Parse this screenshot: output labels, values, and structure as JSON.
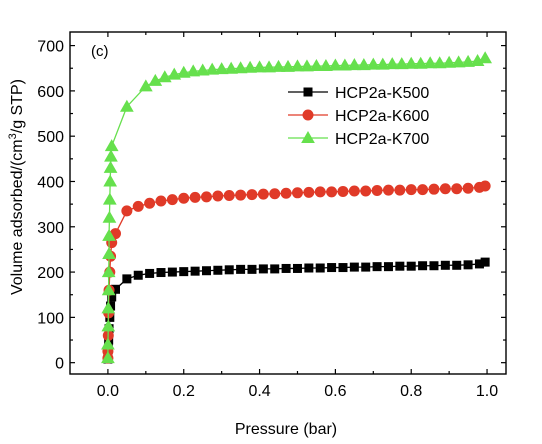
{
  "panel_label": "(c)",
  "chart_data": {
    "type": "scatter",
    "xlabel": "Pressure (bar)",
    "ylabel_pre": "Volume adsorbed/(cm",
    "ylabel_sup": "3",
    "ylabel_post": "/g STP)",
    "xlim": [
      -0.1,
      1.05
    ],
    "ylim": [
      -25,
      730
    ],
    "xticks": [
      0.0,
      0.2,
      0.4,
      0.6,
      0.8,
      1.0
    ],
    "xtick_labels": [
      "0.0",
      "0.2",
      "0.4",
      "0.6",
      "0.8",
      "1.0"
    ],
    "yticks": [
      0,
      100,
      200,
      300,
      400,
      500,
      600,
      700
    ],
    "ytick_labels": [
      "0",
      "100",
      "200",
      "300",
      "400",
      "500",
      "600",
      "700"
    ],
    "grid": false,
    "legend_position": "top-right",
    "series": [
      {
        "name": "HCP2a-K500",
        "marker": "square",
        "color": "#000000",
        "x": [
          0.0,
          0.0,
          0.001,
          0.002,
          0.003,
          0.005,
          0.007,
          0.01,
          0.02,
          0.05,
          0.08,
          0.11,
          0.14,
          0.17,
          0.2,
          0.23,
          0.26,
          0.29,
          0.32,
          0.35,
          0.38,
          0.41,
          0.44,
          0.47,
          0.5,
          0.53,
          0.56,
          0.59,
          0.62,
          0.65,
          0.68,
          0.71,
          0.74,
          0.77,
          0.8,
          0.83,
          0.86,
          0.89,
          0.92,
          0.95,
          0.98,
          0.995
        ],
        "y": [
          8,
          15,
          30,
          50,
          75,
          100,
          125,
          145,
          162,
          185,
          193,
          197,
          199,
          200,
          201,
          202,
          203,
          204,
          205,
          206,
          206,
          207,
          207,
          208,
          208,
          209,
          209,
          210,
          210,
          211,
          211,
          212,
          212,
          213,
          213,
          214,
          214,
          215,
          215,
          216,
          218,
          222
        ]
      },
      {
        "name": "HCP2a-K600",
        "marker": "circle",
        "color": "#e03a28",
        "x": [
          0.0,
          0.0,
          0.001,
          0.002,
          0.003,
          0.005,
          0.007,
          0.01,
          0.02,
          0.05,
          0.08,
          0.11,
          0.14,
          0.17,
          0.2,
          0.23,
          0.26,
          0.29,
          0.32,
          0.35,
          0.38,
          0.41,
          0.44,
          0.47,
          0.5,
          0.53,
          0.56,
          0.59,
          0.62,
          0.65,
          0.68,
          0.71,
          0.74,
          0.77,
          0.8,
          0.83,
          0.86,
          0.89,
          0.92,
          0.95,
          0.98,
          0.995
        ],
        "y": [
          10,
          25,
          60,
          110,
          160,
          200,
          235,
          265,
          285,
          335,
          345,
          352,
          357,
          360,
          363,
          365,
          366,
          368,
          369,
          370,
          371,
          372,
          373,
          374,
          375,
          376,
          377,
          377,
          378,
          379,
          379,
          380,
          381,
          381,
          382,
          382,
          383,
          384,
          384,
          385,
          387,
          390
        ]
      },
      {
        "name": "HCP2a-K700",
        "marker": "triangle",
        "color": "#66e04d",
        "x": [
          0.0,
          0.0,
          0.001,
          0.001,
          0.002,
          0.002,
          0.003,
          0.003,
          0.004,
          0.005,
          0.006,
          0.007,
          0.008,
          0.01,
          0.05,
          0.1,
          0.125,
          0.15,
          0.175,
          0.2,
          0.225,
          0.25,
          0.275,
          0.3,
          0.325,
          0.35,
          0.375,
          0.4,
          0.425,
          0.45,
          0.475,
          0.5,
          0.525,
          0.55,
          0.575,
          0.6,
          0.625,
          0.65,
          0.675,
          0.7,
          0.725,
          0.75,
          0.775,
          0.8,
          0.825,
          0.85,
          0.875,
          0.9,
          0.925,
          0.95,
          0.975,
          0.995
        ],
        "y": [
          10,
          40,
          80,
          120,
          160,
          200,
          240,
          280,
          320,
          360,
          400,
          430,
          455,
          478,
          565,
          610,
          622,
          630,
          636,
          640,
          643,
          645,
          647,
          648,
          649,
          650,
          651,
          652,
          652,
          653,
          653,
          654,
          654,
          655,
          655,
          656,
          656,
          657,
          657,
          658,
          658,
          659,
          659,
          660,
          660,
          661,
          661,
          662,
          663,
          664,
          666,
          672
        ]
      }
    ]
  }
}
